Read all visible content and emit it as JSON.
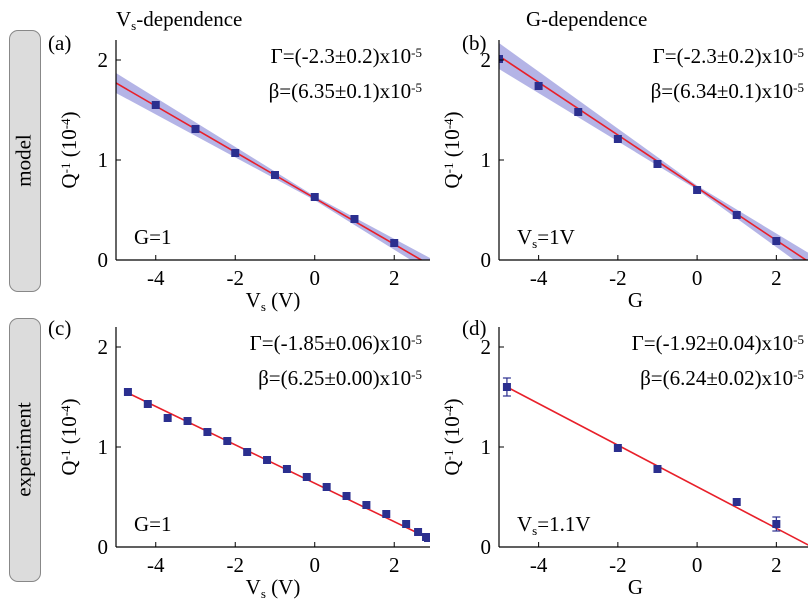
{
  "figure": {
    "col_titles": [
      {
        "main": "V",
        "sub": "s",
        "rest": "-dependence"
      },
      {
        "main": "G-dependence",
        "sub": "",
        "rest": ""
      }
    ],
    "row_labels": [
      "model",
      "experiment"
    ],
    "colors": {
      "fit_line": "#e8202a",
      "marker": "#2b2f8f",
      "band": "#b4b4e6",
      "row_box": "#dcdcdc"
    }
  },
  "chart_data": [
    {
      "type": "scatter",
      "panel_label": "(a)",
      "xlabel": {
        "main": "V",
        "sub": "s",
        "rest": " (V)"
      },
      "ylabel": {
        "main": "Q",
        "sup": "-1",
        "rest": "  (10",
        "sup2": "-4",
        "close": ")"
      },
      "xlim": [
        -5,
        2.9
      ],
      "ylim": [
        0,
        2.2
      ],
      "xticks": [
        -4,
        -2,
        0,
        2
      ],
      "yticks": [
        0,
        1,
        2
      ],
      "annotations": {
        "gamma": "Γ=(-2.3±0.2)x10",
        "gamma_exp": "-5",
        "beta": "β=(6.35±0.1)x10",
        "beta_exp": "-5"
      },
      "condition": {
        "main": "G=1",
        "sub": "",
        "rest": ""
      },
      "points": {
        "x": [
          -4,
          -3,
          -2,
          -1,
          0,
          1,
          2
        ],
        "y": [
          1.55,
          1.31,
          1.07,
          0.85,
          0.63,
          0.41,
          0.17
        ]
      },
      "fit": {
        "x": [
          -5,
          2.9
        ],
        "y": [
          1.77,
          -0.05
        ]
      },
      "band": {
        "x": [
          -5,
          0,
          2.9
        ],
        "half_width": [
          0.1,
          0.02,
          0.07
        ]
      },
      "errorbars": []
    },
    {
      "type": "scatter",
      "panel_label": "(b)",
      "xlabel": {
        "main": "G",
        "sub": "",
        "rest": ""
      },
      "ylabel": {
        "main": "Q",
        "sup": "-1",
        "rest": "  (10",
        "sup2": "-4",
        "close": ")"
      },
      "xlim": [
        -5,
        2.9
      ],
      "ylim": [
        0,
        2.2
      ],
      "xticks": [
        -4,
        -2,
        0,
        2
      ],
      "yticks": [
        0,
        1,
        2
      ],
      "annotations": {
        "gamma": "Γ=(-2.3±0.2)x10",
        "gamma_exp": "-5",
        "beta": "β=(6.34±0.1)x10",
        "beta_exp": "-5"
      },
      "condition": {
        "main": "V",
        "sub": "s",
        "rest": "=1V"
      },
      "points": {
        "x": [
          -5,
          -4,
          -3,
          -2,
          -1,
          0,
          1,
          2
        ],
        "y": [
          2.01,
          1.74,
          1.48,
          1.21,
          0.96,
          0.7,
          0.45,
          0.19
        ]
      },
      "fit": {
        "x": [
          -5,
          2.9
        ],
        "y": [
          2.04,
          -0.04
        ]
      },
      "band": {
        "x": [
          -5,
          0,
          2.9
        ],
        "half_width": [
          0.13,
          0.02,
          0.09
        ]
      },
      "errorbars": []
    },
    {
      "type": "scatter",
      "panel_label": "(c)",
      "xlabel": {
        "main": "V",
        "sub": "s",
        "rest": " (V)"
      },
      "ylabel": {
        "main": "Q",
        "sup": "-1",
        "rest": "  (10",
        "sup2": "-4",
        "close": ")"
      },
      "xlim": [
        -5,
        2.9
      ],
      "ylim": [
        0,
        2.2
      ],
      "xticks": [
        -4,
        -2,
        0,
        2
      ],
      "yticks": [
        0,
        1,
        2
      ],
      "annotations": {
        "gamma": "Γ=(-1.85±0.06)x10",
        "gamma_exp": "-5",
        "beta": "β=(6.25±0.00)x10",
        "beta_exp": "-5"
      },
      "condition": {
        "main": "G=1",
        "sub": "",
        "rest": ""
      },
      "points": {
        "x": [
          -4.7,
          -4.2,
          -3.7,
          -3.2,
          -2.7,
          -2.2,
          -1.7,
          -1.2,
          -0.7,
          -0.2,
          0.3,
          0.8,
          1.3,
          1.8,
          2.3,
          2.6,
          2.8,
          2.85
        ],
        "y": [
          1.55,
          1.43,
          1.29,
          1.26,
          1.15,
          1.06,
          0.95,
          0.87,
          0.78,
          0.7,
          0.6,
          0.51,
          0.42,
          0.33,
          0.23,
          0.15,
          0.1,
          0.09
        ]
      },
      "fit": {
        "x": [
          -4.7,
          2.85
        ],
        "y": [
          1.54,
          0.09
        ]
      },
      "band": null,
      "errorbars": []
    },
    {
      "type": "scatter",
      "panel_label": "(d)",
      "xlabel": {
        "main": "G",
        "sub": "",
        "rest": ""
      },
      "ylabel": {
        "main": "Q",
        "sup": "-1",
        "rest": "  (10",
        "sup2": "-4",
        "close": ")"
      },
      "xlim": [
        -5,
        2.9
      ],
      "ylim": [
        0,
        2.2
      ],
      "xticks": [
        -4,
        -2,
        0,
        2
      ],
      "yticks": [
        0,
        1,
        2
      ],
      "annotations": {
        "gamma": "Γ=(-1.92±0.04)x10",
        "gamma_exp": "-5",
        "beta": "β=(6.24±0.02)x10",
        "beta_exp": "-5"
      },
      "condition": {
        "main": "V",
        "sub": "s",
        "rest": "=1.1V"
      },
      "points": {
        "x": [
          -4.8,
          -2,
          -1,
          1,
          2
        ],
        "y": [
          1.6,
          0.99,
          0.78,
          0.45,
          0.23
        ]
      },
      "fit": {
        "x": [
          -4.8,
          2.9
        ],
        "y": [
          1.6,
          0.0
        ]
      },
      "band": null,
      "errorbars": [
        {
          "x": -4.8,
          "y": 1.6,
          "err": 0.09
        },
        {
          "x": 2,
          "y": 0.23,
          "err": 0.07
        }
      ]
    }
  ]
}
